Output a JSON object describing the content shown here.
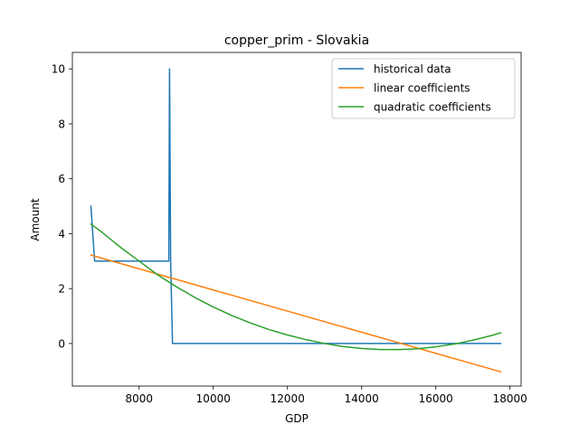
{
  "chart_data": {
    "type": "line",
    "title": "copper_prim - Slovakia",
    "xlabel": "GDP",
    "ylabel": "Amount",
    "xlim": [
      6200,
      18300
    ],
    "ylim": [
      -1.55,
      10.6
    ],
    "xticks": [
      8000,
      10000,
      12000,
      14000,
      16000,
      18000
    ],
    "yticks": [
      0,
      2,
      4,
      6,
      8,
      10
    ],
    "grid": false,
    "legend_position": "top-right",
    "series": [
      {
        "name": "historical data",
        "color": "#1f77b4",
        "x": [
          6700,
          6800,
          8800,
          8820,
          8850,
          8900,
          17750
        ],
        "y": [
          5,
          3,
          3,
          10,
          3,
          0,
          0
        ]
      },
      {
        "name": "linear coefficients",
        "color": "#ff7f0e",
        "x": [
          6700,
          17750
        ],
        "y": [
          3.22,
          -1.03
        ]
      },
      {
        "name": "quadratic coefficients",
        "color": "#2ca02c",
        "x": [
          6700,
          7000,
          7500,
          8000,
          8500,
          9000,
          9500,
          10000,
          10500,
          11000,
          11500,
          12000,
          12500,
          13000,
          13500,
          14000,
          14500,
          15000,
          15500,
          16000,
          16500,
          17000,
          17500,
          17750
        ],
        "y": [
          4.35,
          4.05,
          3.5,
          3.0,
          2.5,
          2.07,
          1.68,
          1.33,
          1.02,
          0.75,
          0.51,
          0.31,
          0.14,
          0.0,
          -0.11,
          -0.18,
          -0.22,
          -0.22,
          -0.19,
          -0.12,
          -0.02,
          0.12,
          0.29,
          0.39
        ]
      }
    ]
  }
}
